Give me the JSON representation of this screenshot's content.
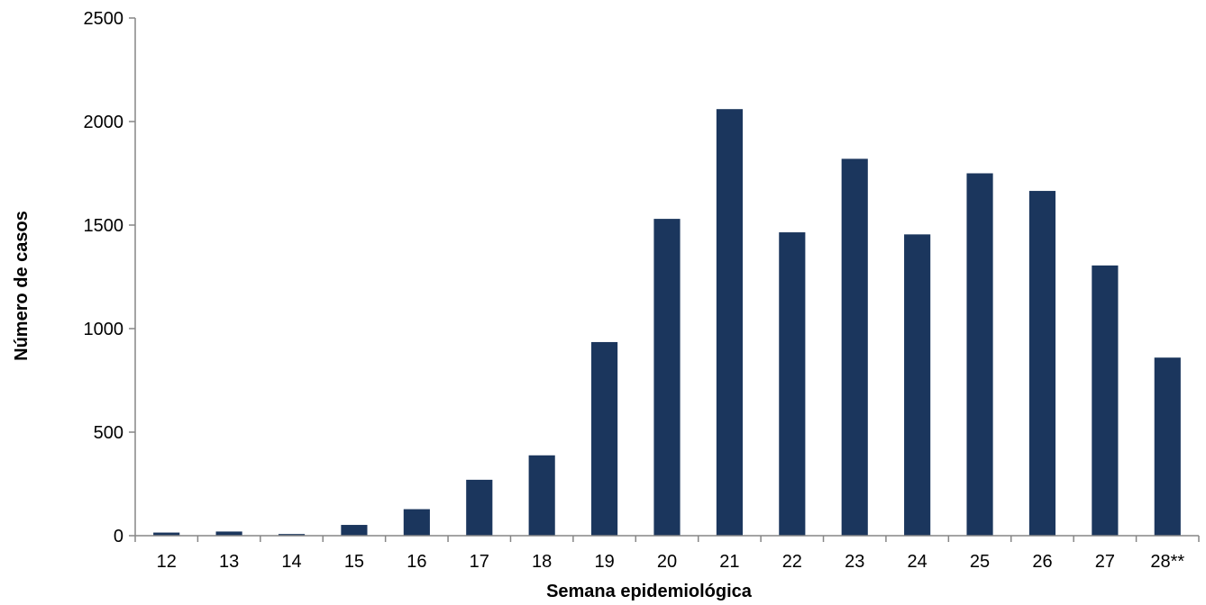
{
  "chart_data": {
    "type": "bar",
    "title": "",
    "xlabel": "Semana epidemiológica",
    "ylabel": "Número de casos",
    "categories": [
      "12",
      "13",
      "14",
      "15",
      "16",
      "17",
      "18",
      "19",
      "20",
      "21",
      "22",
      "23",
      "24",
      "25",
      "26",
      "27",
      "28**"
    ],
    "series": [
      {
        "values": [
          15,
          20,
          8,
          52,
          128,
          270,
          388,
          935,
          1530,
          2060,
          1465,
          1820,
          1455,
          1750,
          1665,
          1305,
          860
        ],
        "color": "#1b365d"
      }
    ],
    "ylim": [
      0,
      2500
    ],
    "yticks": [
      0,
      500,
      1000,
      1500,
      2000,
      2500
    ],
    "grid": false,
    "legend": "none"
  }
}
